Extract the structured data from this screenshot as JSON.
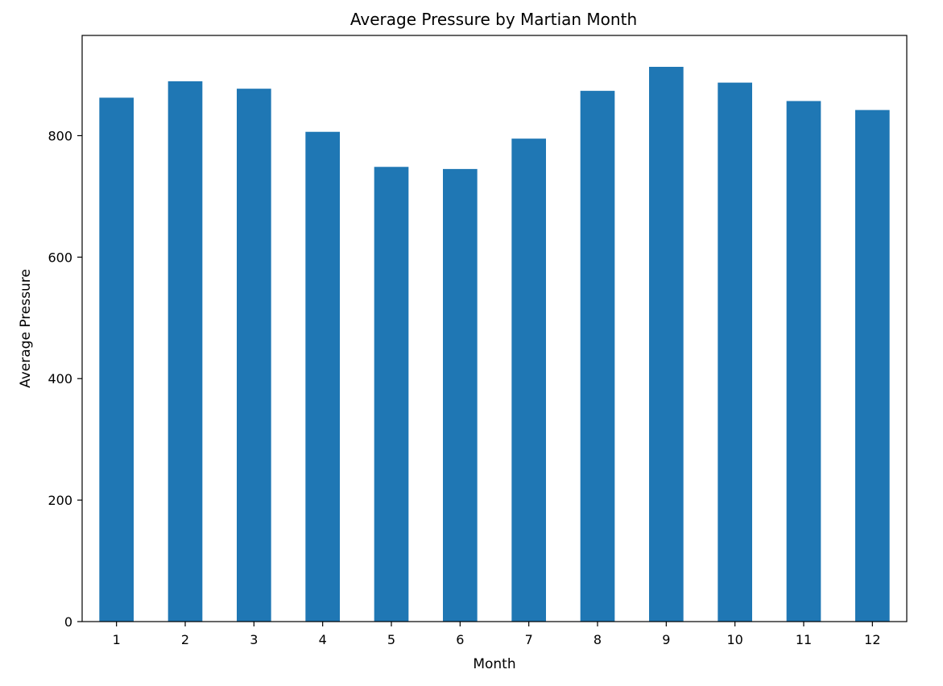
{
  "chart_data": {
    "type": "bar",
    "title": "Average Pressure by Martian Month",
    "xlabel": "Month",
    "ylabel": "Average Pressure",
    "categories": [
      "1",
      "2",
      "3",
      "4",
      "5",
      "6",
      "7",
      "8",
      "9",
      "10",
      "11",
      "12"
    ],
    "values": [
      862.5,
      889.5,
      877.3,
      806.3,
      748.6,
      745.1,
      795.1,
      873.8,
      913.3,
      887.3,
      857.0,
      842.2
    ],
    "ylim": [
      0,
      965
    ],
    "yticks": [
      0,
      200,
      400,
      600,
      800
    ],
    "grid": false,
    "legend": "none",
    "bar_color": "#1f77b4"
  }
}
